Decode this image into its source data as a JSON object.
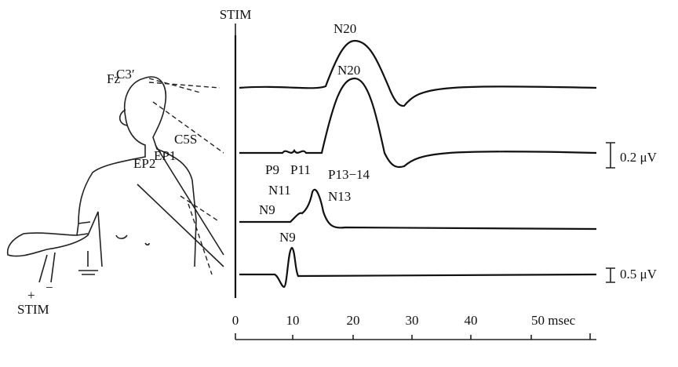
{
  "figure": {
    "stim_top": "STIM",
    "body_labels": {
      "c3": "C3′",
      "fz": "Fz",
      "c5s": "C5S",
      "ep2": "EP2",
      "ep1": "EP1",
      "plus": "+",
      "minus": "−",
      "stim": "STIM"
    },
    "peaks": {
      "n20_a": "N20",
      "n20_b": "N20",
      "p9": "P9",
      "p11": "P11",
      "p13_14": "P13−14",
      "n11": "N11",
      "n9_a": "N9",
      "n13": "N13",
      "n9_b": "N9"
    },
    "calibration": {
      "top": "0.2 μV",
      "bottom": "0.5 μV"
    },
    "time_axis": {
      "ticks": [
        "0",
        "10",
        "20",
        "30",
        "40",
        "50 msec"
      ]
    }
  }
}
